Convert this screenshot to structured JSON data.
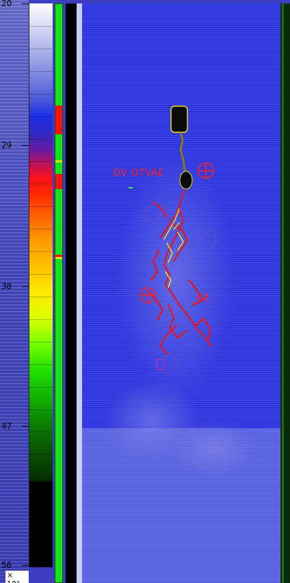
{
  "depth_axis": {
    "ticks": [
      "20",
      "29",
      "38",
      "47",
      "56"
    ],
    "unit": "× 10³"
  },
  "colors": {
    "background_blue": "#3035d8",
    "marker_red": "#ff2020",
    "track_green": "#18e018",
    "track_red": "#ff1010"
  },
  "markers": [
    {
      "label": "OV OTVAE",
      "icon": "crosshair-circle-icon"
    },
    {
      "label": "_68",
      "icon": "crosshair-circle-icon"
    }
  ],
  "status_track": {
    "segments": [
      "green",
      "red",
      "green",
      "red",
      "green",
      "red",
      "green"
    ]
  }
}
